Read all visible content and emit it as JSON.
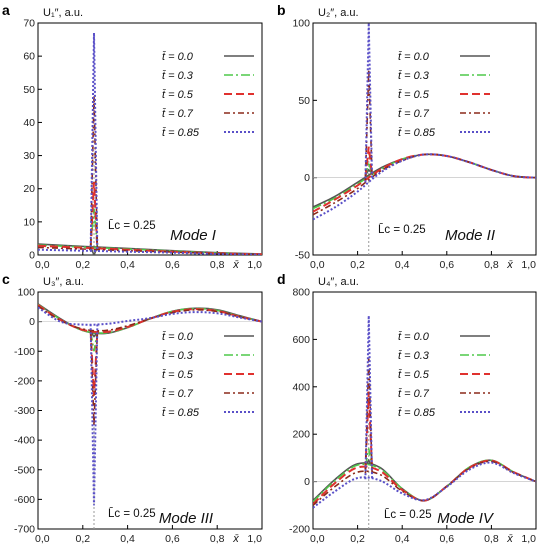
{
  "chart_data": [
    {
      "panel": "a",
      "type": "line",
      "ylabel": "U₁″, a.u.",
      "xlabel": "x̄",
      "xlim": [
        0,
        1
      ],
      "ylim": [
        0,
        70
      ],
      "xticks": [
        "0,0",
        "0,2",
        "0,4",
        "0,6",
        "0,8",
        "1,0"
      ],
      "yticks": [
        "0",
        "10",
        "20",
        "30",
        "40",
        "50",
        "60",
        "70"
      ],
      "mode_label": "Mode I",
      "lc_label": "L̄c = 0.25",
      "legend": [
        "t̄ = 0.0",
        "t̄ = 0.3",
        "t̄ = 0.5",
        "t̄ = 0.7",
        "t̄ = 0.85"
      ],
      "series": [
        {
          "t": 0.0,
          "peak": 0,
          "x": [
            0,
            0.2,
            0.4,
            0.6,
            0.8,
            1.0
          ],
          "y": [
            3.3,
            2.6,
            2.0,
            1.3,
            0.7,
            0.3
          ]
        },
        {
          "t": 0.3,
          "peak": 14,
          "x": [
            0,
            0.2,
            0.4,
            0.6,
            0.8,
            1.0
          ],
          "y": [
            3.0,
            2.4,
            1.8,
            1.2,
            0.6,
            0.2
          ]
        },
        {
          "t": 0.5,
          "peak": 22,
          "x": [
            0,
            0.2,
            0.4,
            0.6,
            0.8,
            1.0
          ],
          "y": [
            2.8,
            2.2,
            1.6,
            1.0,
            0.5,
            0.2
          ]
        },
        {
          "t": 0.7,
          "peak": 48,
          "x": [
            0,
            0.2,
            0.4,
            0.6,
            0.8,
            1.0
          ],
          "y": [
            2.3,
            1.8,
            1.3,
            0.9,
            0.4,
            0.1
          ]
        },
        {
          "t": 0.85,
          "peak": 67,
          "x": [
            0,
            0.2,
            0.4,
            0.6,
            0.8,
            1.0
          ],
          "y": [
            1.6,
            1.3,
            1.0,
            0.7,
            0.3,
            0.1
          ]
        }
      ]
    },
    {
      "panel": "b",
      "type": "line",
      "ylabel": "U₂″, a.u.",
      "xlabel": "x̄",
      "xlim": [
        0,
        1
      ],
      "ylim": [
        -50,
        100
      ],
      "xticks": [
        "0,0",
        "0,2",
        "0,4",
        "0,6",
        "0,8",
        "1,0"
      ],
      "yticks": [
        "-50",
        "0",
        "50",
        "100"
      ],
      "mode_label": "Mode II",
      "lc_label": "L̄c = 0.25",
      "legend": [
        "t̄ = 0.0",
        "t̄ = 0.3",
        "t̄ = 0.5",
        "t̄ = 0.7",
        "t̄ = 0.85"
      ],
      "series": [
        {
          "t": 0.0,
          "peak": 5,
          "x": [
            0,
            0.1,
            0.2,
            0.3,
            0.4,
            0.5,
            0.6,
            0.7,
            0.8,
            0.9,
            1.0
          ],
          "y": [
            -19,
            -12,
            -3,
            6,
            12,
            15,
            14,
            10,
            5,
            1,
            0
          ]
        },
        {
          "t": 0.3,
          "peak": 10,
          "x": [
            0,
            0.1,
            0.2,
            0.3,
            0.4,
            0.5,
            0.6,
            0.7,
            0.8,
            0.9,
            1.0
          ],
          "y": [
            -20,
            -13,
            -4,
            5,
            12,
            15,
            14,
            10,
            5,
            1,
            0
          ]
        },
        {
          "t": 0.5,
          "peak": 20,
          "x": [
            0,
            0.1,
            0.2,
            0.3,
            0.4,
            0.5,
            0.6,
            0.7,
            0.8,
            0.9,
            1.0
          ],
          "y": [
            -22,
            -14,
            -5,
            5,
            12,
            15,
            14,
            10,
            5,
            1,
            0
          ]
        },
        {
          "t": 0.7,
          "peak": 70,
          "x": [
            0,
            0.1,
            0.2,
            0.3,
            0.4,
            0.5,
            0.6,
            0.7,
            0.8,
            0.9,
            1.0
          ],
          "y": [
            -24,
            -16,
            -7,
            4,
            11,
            15,
            14,
            10,
            5,
            1,
            0
          ]
        },
        {
          "t": 0.85,
          "peak": 100,
          "x": [
            0,
            0.1,
            0.2,
            0.3,
            0.4,
            0.5,
            0.6,
            0.7,
            0.8,
            0.9,
            1.0
          ],
          "y": [
            -27,
            -19,
            -9,
            3,
            11,
            15,
            14,
            10,
            5,
            1,
            0
          ]
        }
      ]
    },
    {
      "panel": "c",
      "type": "line",
      "ylabel": "U₃″, a.u.",
      "xlabel": "x̄",
      "xlim": [
        0,
        1
      ],
      "ylim": [
        -700,
        100
      ],
      "xticks": [
        "0,0",
        "0,2",
        "0,4",
        "0,6",
        "0,8",
        "1,0"
      ],
      "yticks": [
        "-700",
        "-600",
        "-500",
        "-400",
        "-300",
        "-200",
        "-100",
        "0",
        "100"
      ],
      "mode_label": "Mode III",
      "lc_label": "L̄c = 0.25",
      "legend": [
        "t̄ = 0.0",
        "t̄ = 0.3",
        "t̄ = 0.5",
        "t̄ = 0.7",
        "t̄ = 0.85"
      ],
      "series": [
        {
          "t": 0.0,
          "peak": -50,
          "x": [
            0,
            0.1,
            0.2,
            0.3,
            0.4,
            0.5,
            0.6,
            0.7,
            0.8,
            0.9,
            1.0
          ],
          "y": [
            60,
            10,
            -30,
            -40,
            -20,
            10,
            35,
            45,
            40,
            20,
            0
          ]
        },
        {
          "t": 0.3,
          "peak": -100,
          "x": [
            0,
            0.1,
            0.2,
            0.3,
            0.4,
            0.5,
            0.6,
            0.7,
            0.8,
            0.9,
            1.0
          ],
          "y": [
            58,
            8,
            -30,
            -38,
            -20,
            10,
            35,
            44,
            38,
            18,
            0
          ]
        },
        {
          "t": 0.5,
          "peak": -250,
          "x": [
            0,
            0.1,
            0.2,
            0.3,
            0.4,
            0.5,
            0.6,
            0.7,
            0.8,
            0.9,
            1.0
          ],
          "y": [
            56,
            6,
            -28,
            -35,
            -18,
            10,
            33,
            42,
            36,
            17,
            0
          ]
        },
        {
          "t": 0.7,
          "peak": -350,
          "x": [
            0,
            0.1,
            0.2,
            0.3,
            0.4,
            0.5,
            0.6,
            0.7,
            0.8,
            0.9,
            1.0
          ],
          "y": [
            52,
            4,
            -25,
            -30,
            -14,
            10,
            30,
            40,
            34,
            16,
            0
          ]
        },
        {
          "t": 0.85,
          "peak": -620,
          "x": [
            0,
            0.1,
            0.2,
            0.3,
            0.4,
            0.5,
            0.6,
            0.7,
            0.8,
            0.9,
            1.0
          ],
          "y": [
            48,
            0,
            -10,
            -8,
            2,
            12,
            26,
            32,
            28,
            14,
            0
          ]
        }
      ]
    },
    {
      "panel": "d",
      "type": "line",
      "ylabel": "U₄″, a.u.",
      "xlabel": "x̄",
      "xlim": [
        0,
        1
      ],
      "ylim": [
        -200,
        800
      ],
      "xticks": [
        "0,0",
        "0,2",
        "0,4",
        "0,6",
        "0,8",
        "1,0"
      ],
      "yticks": [
        "-200",
        "0",
        "200",
        "400",
        "600",
        "800"
      ],
      "mode_label": "Mode IV",
      "lc_label": "L̄c = 0.25",
      "legend": [
        "t̄ = 0.0",
        "t̄ = 0.3",
        "t̄ = 0.5",
        "t̄ = 0.7",
        "t̄ = 0.85"
      ],
      "series": [
        {
          "t": 0.0,
          "peak": 90,
          "x": [
            0,
            0.1,
            0.2,
            0.3,
            0.4,
            0.5,
            0.6,
            0.7,
            0.8,
            0.9,
            1.0
          ],
          "y": [
            -80,
            10,
            75,
            60,
            -30,
            -80,
            -20,
            60,
            90,
            40,
            0
          ]
        },
        {
          "t": 0.3,
          "peak": 140,
          "x": [
            0,
            0.1,
            0.2,
            0.3,
            0.4,
            0.5,
            0.6,
            0.7,
            0.8,
            0.9,
            1.0
          ],
          "y": [
            -85,
            5,
            70,
            55,
            -30,
            -80,
            -20,
            60,
            90,
            40,
            0
          ]
        },
        {
          "t": 0.5,
          "peak": 380,
          "x": [
            0,
            0.1,
            0.2,
            0.3,
            0.4,
            0.5,
            0.6,
            0.7,
            0.8,
            0.9,
            1.0
          ],
          "y": [
            -95,
            -5,
            60,
            45,
            -35,
            -80,
            -20,
            58,
            88,
            40,
            0
          ]
        },
        {
          "t": 0.7,
          "peak": 520,
          "x": [
            0,
            0.1,
            0.2,
            0.3,
            0.4,
            0.5,
            0.6,
            0.7,
            0.8,
            0.9,
            1.0
          ],
          "y": [
            -100,
            -20,
            40,
            30,
            -40,
            -80,
            -20,
            55,
            85,
            38,
            0
          ]
        },
        {
          "t": 0.85,
          "peak": 700,
          "x": [
            0,
            0.1,
            0.2,
            0.3,
            0.4,
            0.5,
            0.6,
            0.7,
            0.8,
            0.9,
            1.0
          ],
          "y": [
            -110,
            -40,
            15,
            5,
            -50,
            -78,
            -22,
            50,
            80,
            36,
            0
          ]
        }
      ]
    }
  ],
  "styles": [
    {
      "color": "#555555",
      "dash": "",
      "width": 1.6
    },
    {
      "color": "#4fc84a",
      "dash": "9 3 2 3",
      "width": 1.6
    },
    {
      "color": "#e0312e",
      "dash": "8 4",
      "width": 2.0
    },
    {
      "color": "#8b2a1a",
      "dash": "6 3 2 3",
      "width": 1.6
    },
    {
      "color": "#5a50c8",
      "dash": "2 2",
      "width": 2.0
    }
  ],
  "lc_line_color": "#999999"
}
